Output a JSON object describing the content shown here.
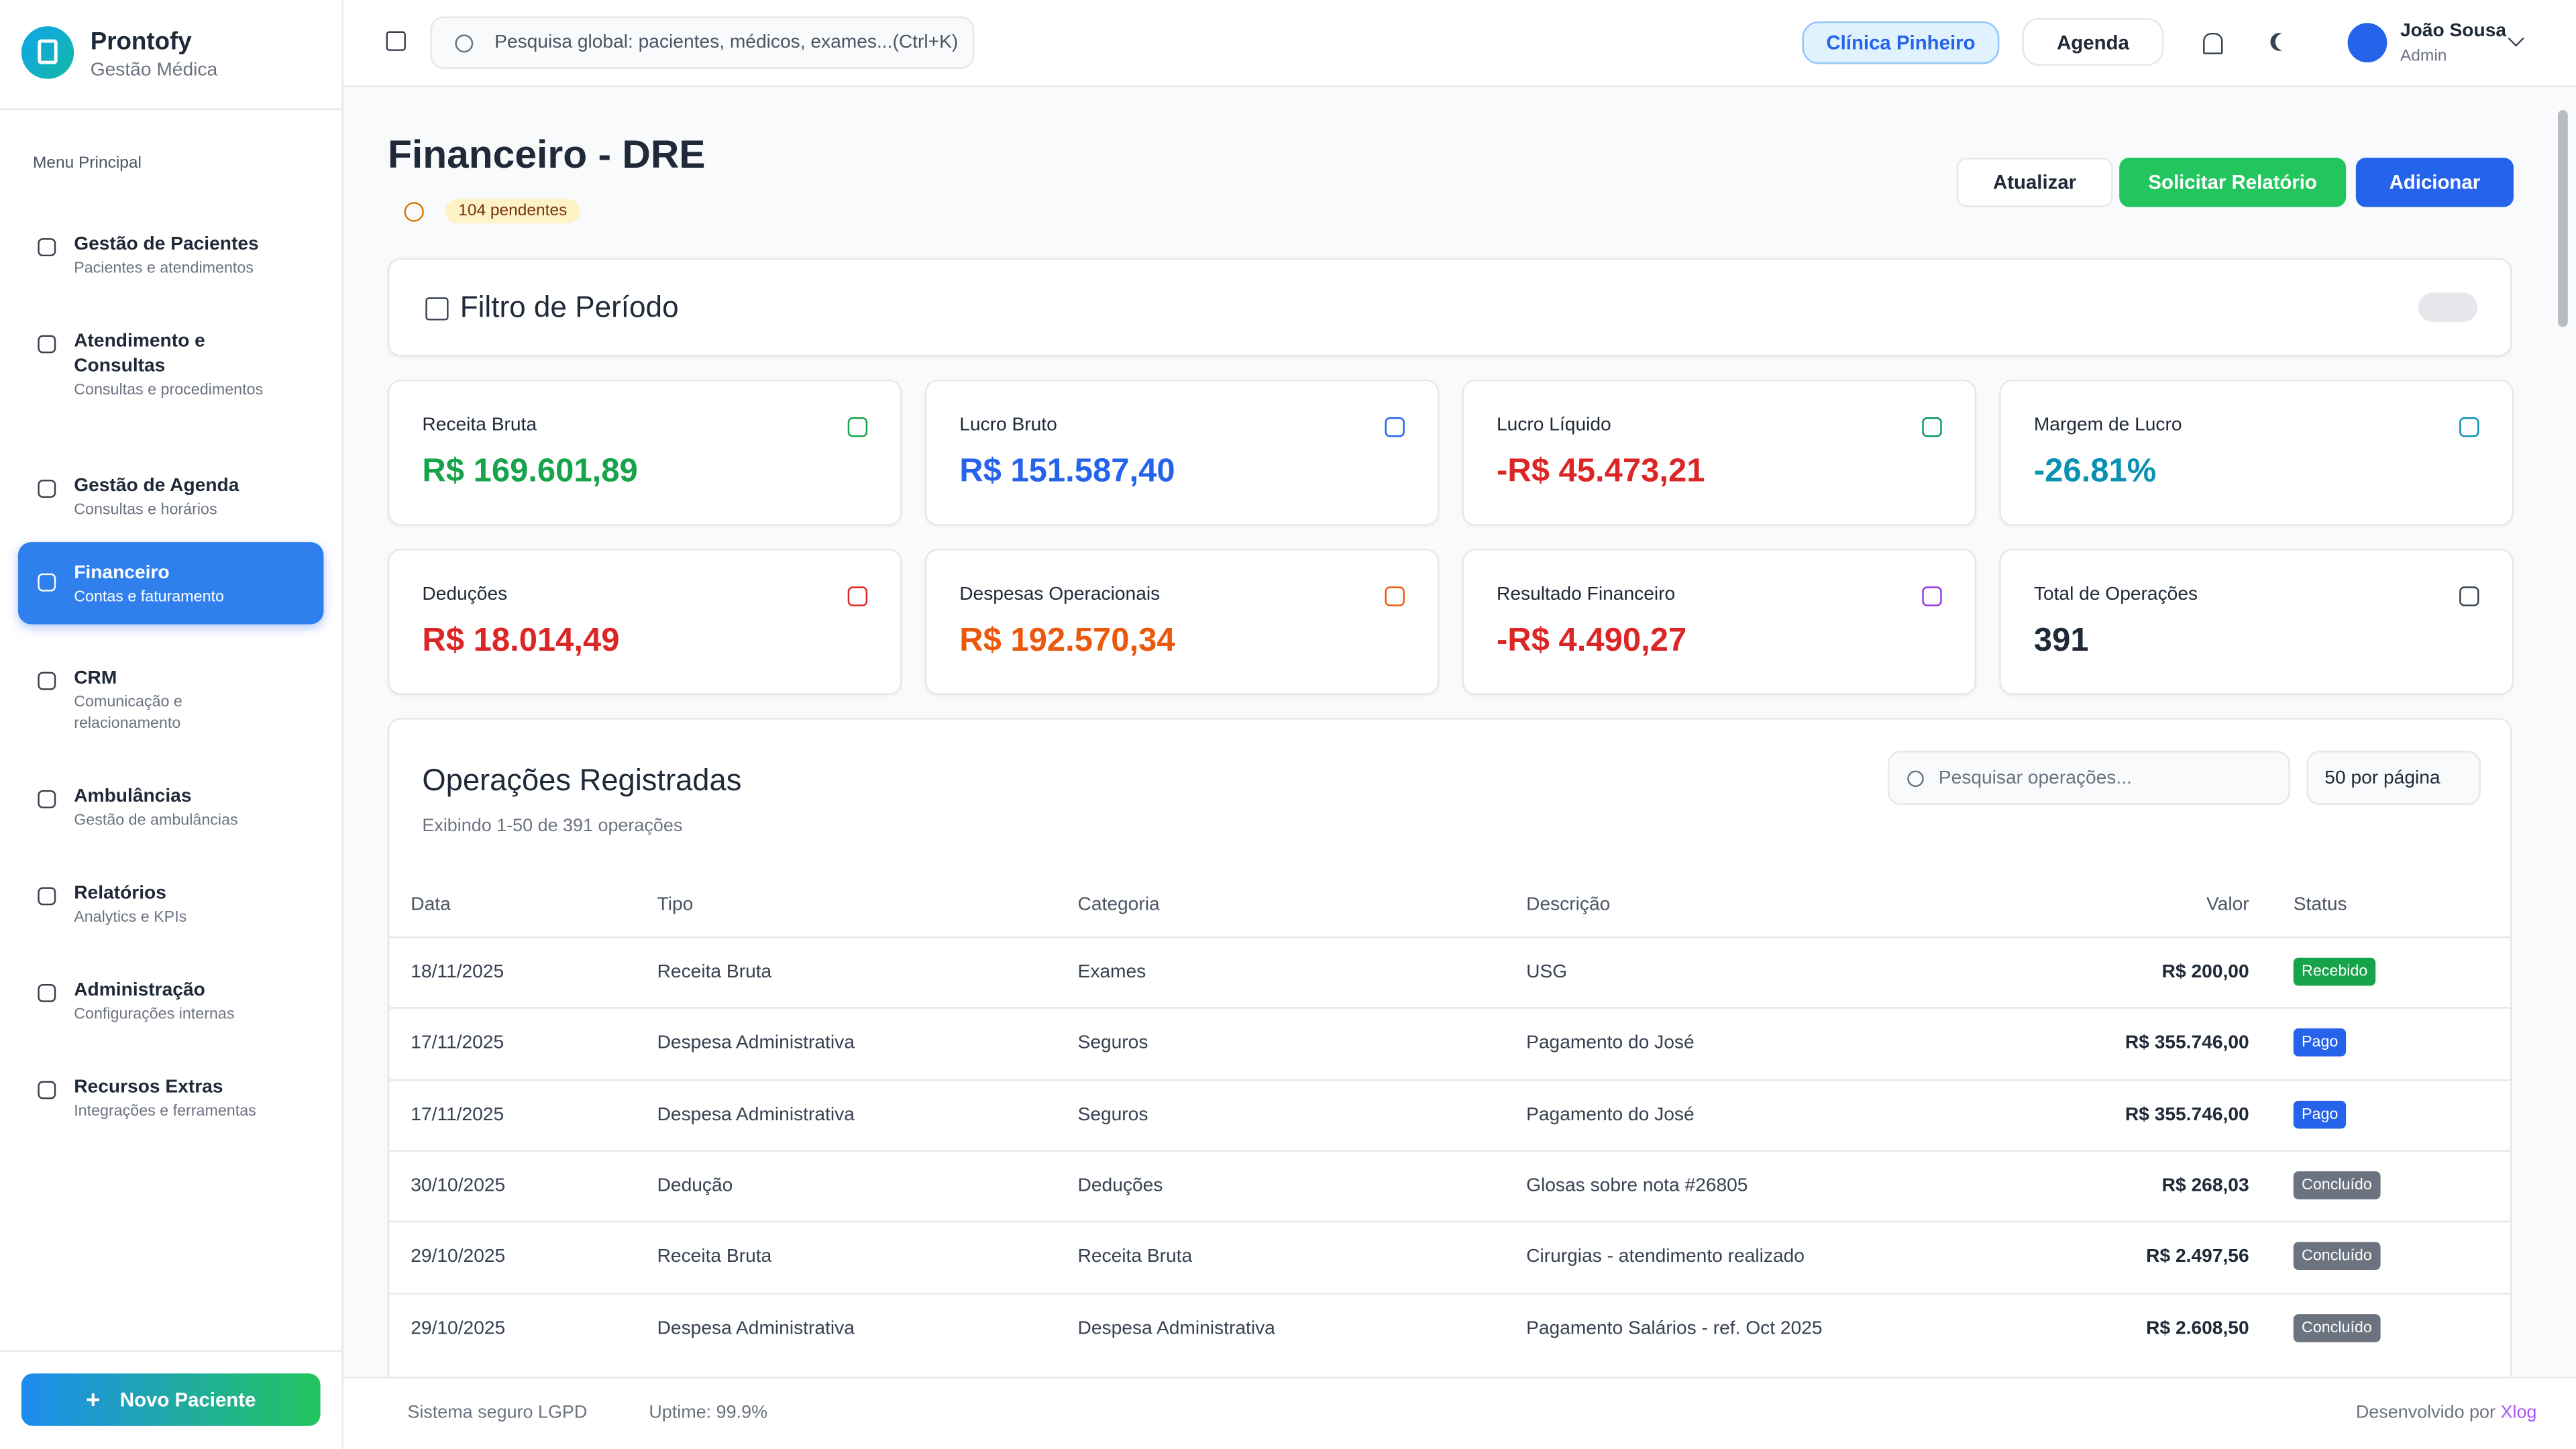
{
  "app": {
    "name": "Prontofy",
    "subtitle": "Gestão Médica"
  },
  "sidebar": {
    "section": "Menu Principal",
    "items": [
      {
        "label": "Gestão de Pacientes",
        "sub": "Pacientes e atendimentos"
      },
      {
        "label": "Atendimento e Consultas",
        "sub": "Consultas e procedimentos"
      },
      {
        "label": "Gestão de Agenda",
        "sub": "Consultas e horários"
      },
      {
        "label": "Financeiro",
        "sub": "Contas e faturamento"
      },
      {
        "label": "CRM",
        "sub": "Comunicação e relacionamento"
      },
      {
        "label": "Ambulâncias",
        "sub": "Gestão de ambulâncias"
      },
      {
        "label": "Relatórios",
        "sub": "Analytics e KPIs"
      },
      {
        "label": "Administração",
        "sub": "Configurações internas"
      },
      {
        "label": "Recursos Extras",
        "sub": "Integrações e ferramentas"
      }
    ],
    "new_patient": "Novo Paciente"
  },
  "topbar": {
    "search": "Pesquisa global: pacientes, médicos, exames...(Ctrl+K)",
    "clinic": "Clínica Pinheiro",
    "agenda": "Agenda",
    "user": {
      "name": "João Sousa",
      "role": "Admin"
    }
  },
  "page": {
    "title": "Financeiro - DRE",
    "pending": "104 pendentes",
    "actions": [
      "Atualizar",
      "Solicitar Relatório",
      "Adicionar"
    ]
  },
  "filter": {
    "title": "Filtro de Período"
  },
  "cards": [
    {
      "label": "Receita Bruta",
      "value": "R$ 169.601,89"
    },
    {
      "label": "Lucro Bruto",
      "value": "R$ 151.587,40"
    },
    {
      "label": "Lucro Líquido",
      "value": "-R$ 45.473,21"
    },
    {
      "label": "Margem de Lucro",
      "value": "-26.81%"
    },
    {
      "label": "Deduções",
      "value": "R$ 18.014,49"
    },
    {
      "label": "Despesas Operacionais",
      "value": "R$ 192.570,34"
    },
    {
      "label": "Resultado Financeiro",
      "value": "-R$ 4.490,27"
    },
    {
      "label": "Total de Operações",
      "value": "391"
    }
  ],
  "operations": {
    "title": "Operações Registradas",
    "subtitle": "Exibindo 1-50 de 391 operações",
    "search": "Pesquisar operações...",
    "page_size": "50 por página",
    "columns": [
      "Data",
      "Tipo",
      "Categoria",
      "Descrição",
      "Valor",
      "Status"
    ],
    "rows": [
      [
        "18/11/2025",
        "Receita Bruta",
        "Exames",
        "USG",
        "R$ 200,00",
        "Recebido"
      ],
      [
        "17/11/2025",
        "Despesa Administrativa",
        "Seguros",
        "Pagamento do José",
        "R$ 355.746,00",
        "Pago"
      ],
      [
        "17/11/2025",
        "Despesa Administrativa",
        "Seguros",
        "Pagamento do José",
        "R$ 355.746,00",
        "Pago"
      ],
      [
        "30/10/2025",
        "Dedução",
        "Deduções",
        "Glosas sobre nota #26805",
        "R$ 268,03",
        "Concluído"
      ],
      [
        "29/10/2025",
        "Receita Bruta",
        "Receita Bruta",
        "Cirurgias - atendimento realizado",
        "R$ 2.497,56",
        "Concluído"
      ],
      [
        "29/10/2025",
        "Despesa Administrativa",
        "Despesa Administrativa",
        "Pagamento Salários - ref. Oct 2025",
        "R$ 2.608,50",
        "Concluído"
      ]
    ]
  },
  "footer": {
    "security": "Sistema seguro LGPD",
    "uptime": "Uptime: 99.9%",
    "credit": "Desenvolvido por",
    "brand": "Xlog"
  }
}
